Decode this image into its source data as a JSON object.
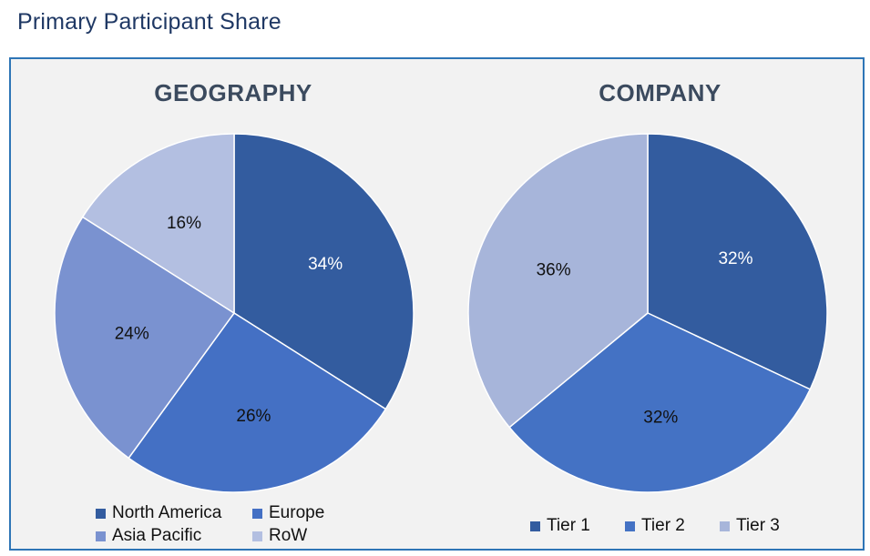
{
  "page_title": "Primary Participant Share",
  "chart_data": [
    {
      "type": "pie",
      "title": "GEOGRAPHY",
      "categories": [
        "North America",
        "Europe",
        "Asia Pacific",
        "RoW"
      ],
      "values": [
        34,
        26,
        24,
        16
      ],
      "labels": [
        "34%",
        "26%",
        "24%",
        "16%"
      ],
      "colors": [
        "#335C9F",
        "#4470C4",
        "#7A92D0",
        "#B3BFE1"
      ],
      "label_colors": [
        "#FFFFFF",
        "#111111",
        "#111111",
        "#111111"
      ],
      "legend_position": "bottom"
    },
    {
      "type": "pie",
      "title": "COMPANY",
      "categories": [
        "Tier 1",
        "Tier 2",
        "Tier 3"
      ],
      "values": [
        32,
        32,
        36
      ],
      "labels": [
        "32%",
        "32%",
        "36%"
      ],
      "colors": [
        "#335C9F",
        "#4472C4",
        "#A7B5DA"
      ],
      "label_colors": [
        "#FFFFFF",
        "#111111",
        "#111111"
      ],
      "legend_position": "bottom"
    }
  ]
}
